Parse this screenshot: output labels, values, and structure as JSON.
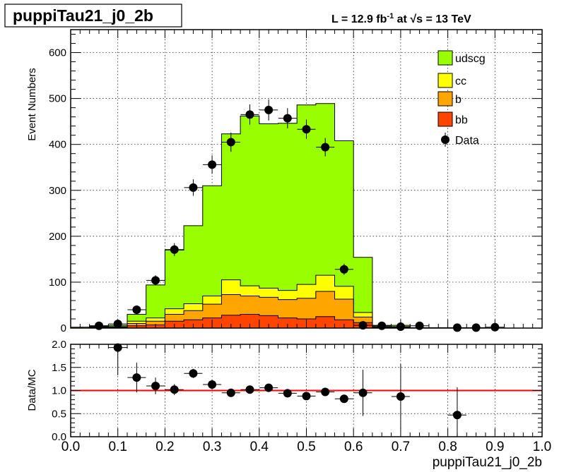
{
  "title": "puppiTau21_j0_2b",
  "lumi_text": "L = 12.9 fb",
  "lumi_sup": "-1",
  "lumi_at": "at",
  "energy_sqrt": "√s",
  "energy_rest": "= 13 TeV",
  "colors": {
    "udscg": "#99ff00",
    "cc": "#ffff00",
    "b": "#ffa500",
    "bb": "#ff4400",
    "data": "#000000",
    "ratio_line": "#ff0000"
  },
  "chart_data": [
    {
      "type": "area",
      "style": "stacked-histogram",
      "ylabel": "Event Numbers",
      "xlim": [
        0.0,
        1.0
      ],
      "ylim": [
        0,
        650
      ],
      "y_ticks": [
        0,
        100,
        200,
        300,
        400,
        500,
        600
      ],
      "grid": true,
      "legend_position": "top-right",
      "bin_edges": [
        0.0,
        0.04,
        0.08,
        0.12,
        0.16,
        0.2,
        0.24,
        0.28,
        0.32,
        0.36,
        0.4,
        0.44,
        0.48,
        0.52,
        0.56,
        0.6,
        0.64,
        0.68,
        0.72,
        0.76,
        0.8,
        0.84,
        0.88,
        0.92,
        0.96,
        1.0
      ],
      "series": [
        {
          "name": "bb",
          "color_key": "bb",
          "values": [
            0,
            1,
            1,
            5,
            7,
            15,
            18,
            22,
            28,
            30,
            27,
            22,
            20,
            25,
            18,
            12,
            1,
            1,
            0,
            0,
            0,
            0,
            0,
            0,
            0
          ]
        },
        {
          "name": "b",
          "color_key": "b",
          "values": [
            0,
            1,
            1,
            5,
            8,
            15,
            20,
            30,
            45,
            40,
            40,
            40,
            45,
            55,
            45,
            12,
            1,
            1,
            0,
            0,
            0,
            0,
            0,
            0,
            0
          ]
        },
        {
          "name": "cc",
          "color_key": "cc",
          "values": [
            0,
            1,
            1,
            5,
            7,
            12,
            15,
            18,
            32,
            22,
            20,
            20,
            30,
            35,
            28,
            10,
            1,
            1,
            0,
            0,
            0,
            0,
            0,
            0,
            0
          ]
        },
        {
          "name": "udscg",
          "color_key": "udscg",
          "values": [
            2,
            2,
            3,
            15,
            72,
            128,
            170,
            240,
            318,
            370,
            358,
            364,
            391,
            374,
            317,
            120,
            3,
            3,
            1,
            1,
            0,
            0,
            0,
            0,
            0
          ]
        }
      ],
      "data_points": {
        "name": "Data",
        "x": [
          0.06,
          0.1,
          0.14,
          0.18,
          0.22,
          0.26,
          0.3,
          0.34,
          0.38,
          0.42,
          0.46,
          0.5,
          0.54,
          0.58,
          0.62,
          0.66,
          0.7,
          0.74,
          0.82,
          0.86,
          0.9
        ],
        "y": [
          5,
          9,
          40,
          104,
          171,
          306,
          356,
          405,
          465,
          475,
          457,
          433,
          394,
          128,
          6,
          5,
          3,
          5,
          1,
          1,
          2
        ],
        "yerr": [
          3,
          3,
          8,
          11,
          14,
          18,
          20,
          21,
          22,
          23,
          22,
          21,
          20,
          12,
          3,
          3,
          2,
          3,
          1,
          1,
          1
        ]
      }
    },
    {
      "type": "scatter",
      "ylabel": "Data/MC",
      "xlabel": "puppiTau21_j0_2b",
      "xlim": [
        0.0,
        1.0
      ],
      "ylim": [
        0.0,
        2.0
      ],
      "x_ticks": [
        0.0,
        0.1,
        0.2,
        0.3,
        0.4,
        0.5,
        0.6,
        0.7,
        0.8,
        0.9,
        1.0
      ],
      "x_tick_labels": [
        "0.0",
        "0.1",
        "0.2",
        "0.3",
        "0.4",
        "0.5",
        "0.6",
        "0.7",
        "0.8",
        "0.9",
        "1.0"
      ],
      "y_ticks": [
        0.0,
        0.5,
        1.0,
        1.5,
        2.0
      ],
      "y_tick_labels": [
        "0.0",
        "0.5",
        "1.0",
        "1.5",
        "2.0"
      ],
      "grid": true,
      "reference_line": 1.0,
      "points": {
        "x": [
          0.1,
          0.14,
          0.18,
          0.22,
          0.26,
          0.3,
          0.34,
          0.38,
          0.42,
          0.46,
          0.5,
          0.54,
          0.58,
          0.62,
          0.7,
          0.82
        ],
        "y": [
          1.93,
          1.28,
          1.1,
          1.02,
          1.37,
          1.13,
          0.95,
          1.02,
          1.06,
          0.94,
          0.88,
          0.97,
          0.82,
          0.95,
          0.87,
          0.47
        ],
        "yerr": [
          0.6,
          0.32,
          0.18,
          0.12,
          0.1,
          0.1,
          0.05,
          0.05,
          0.04,
          0.05,
          0.05,
          0.05,
          0.06,
          0.5,
          0.7,
          0.6
        ]
      }
    }
  ]
}
